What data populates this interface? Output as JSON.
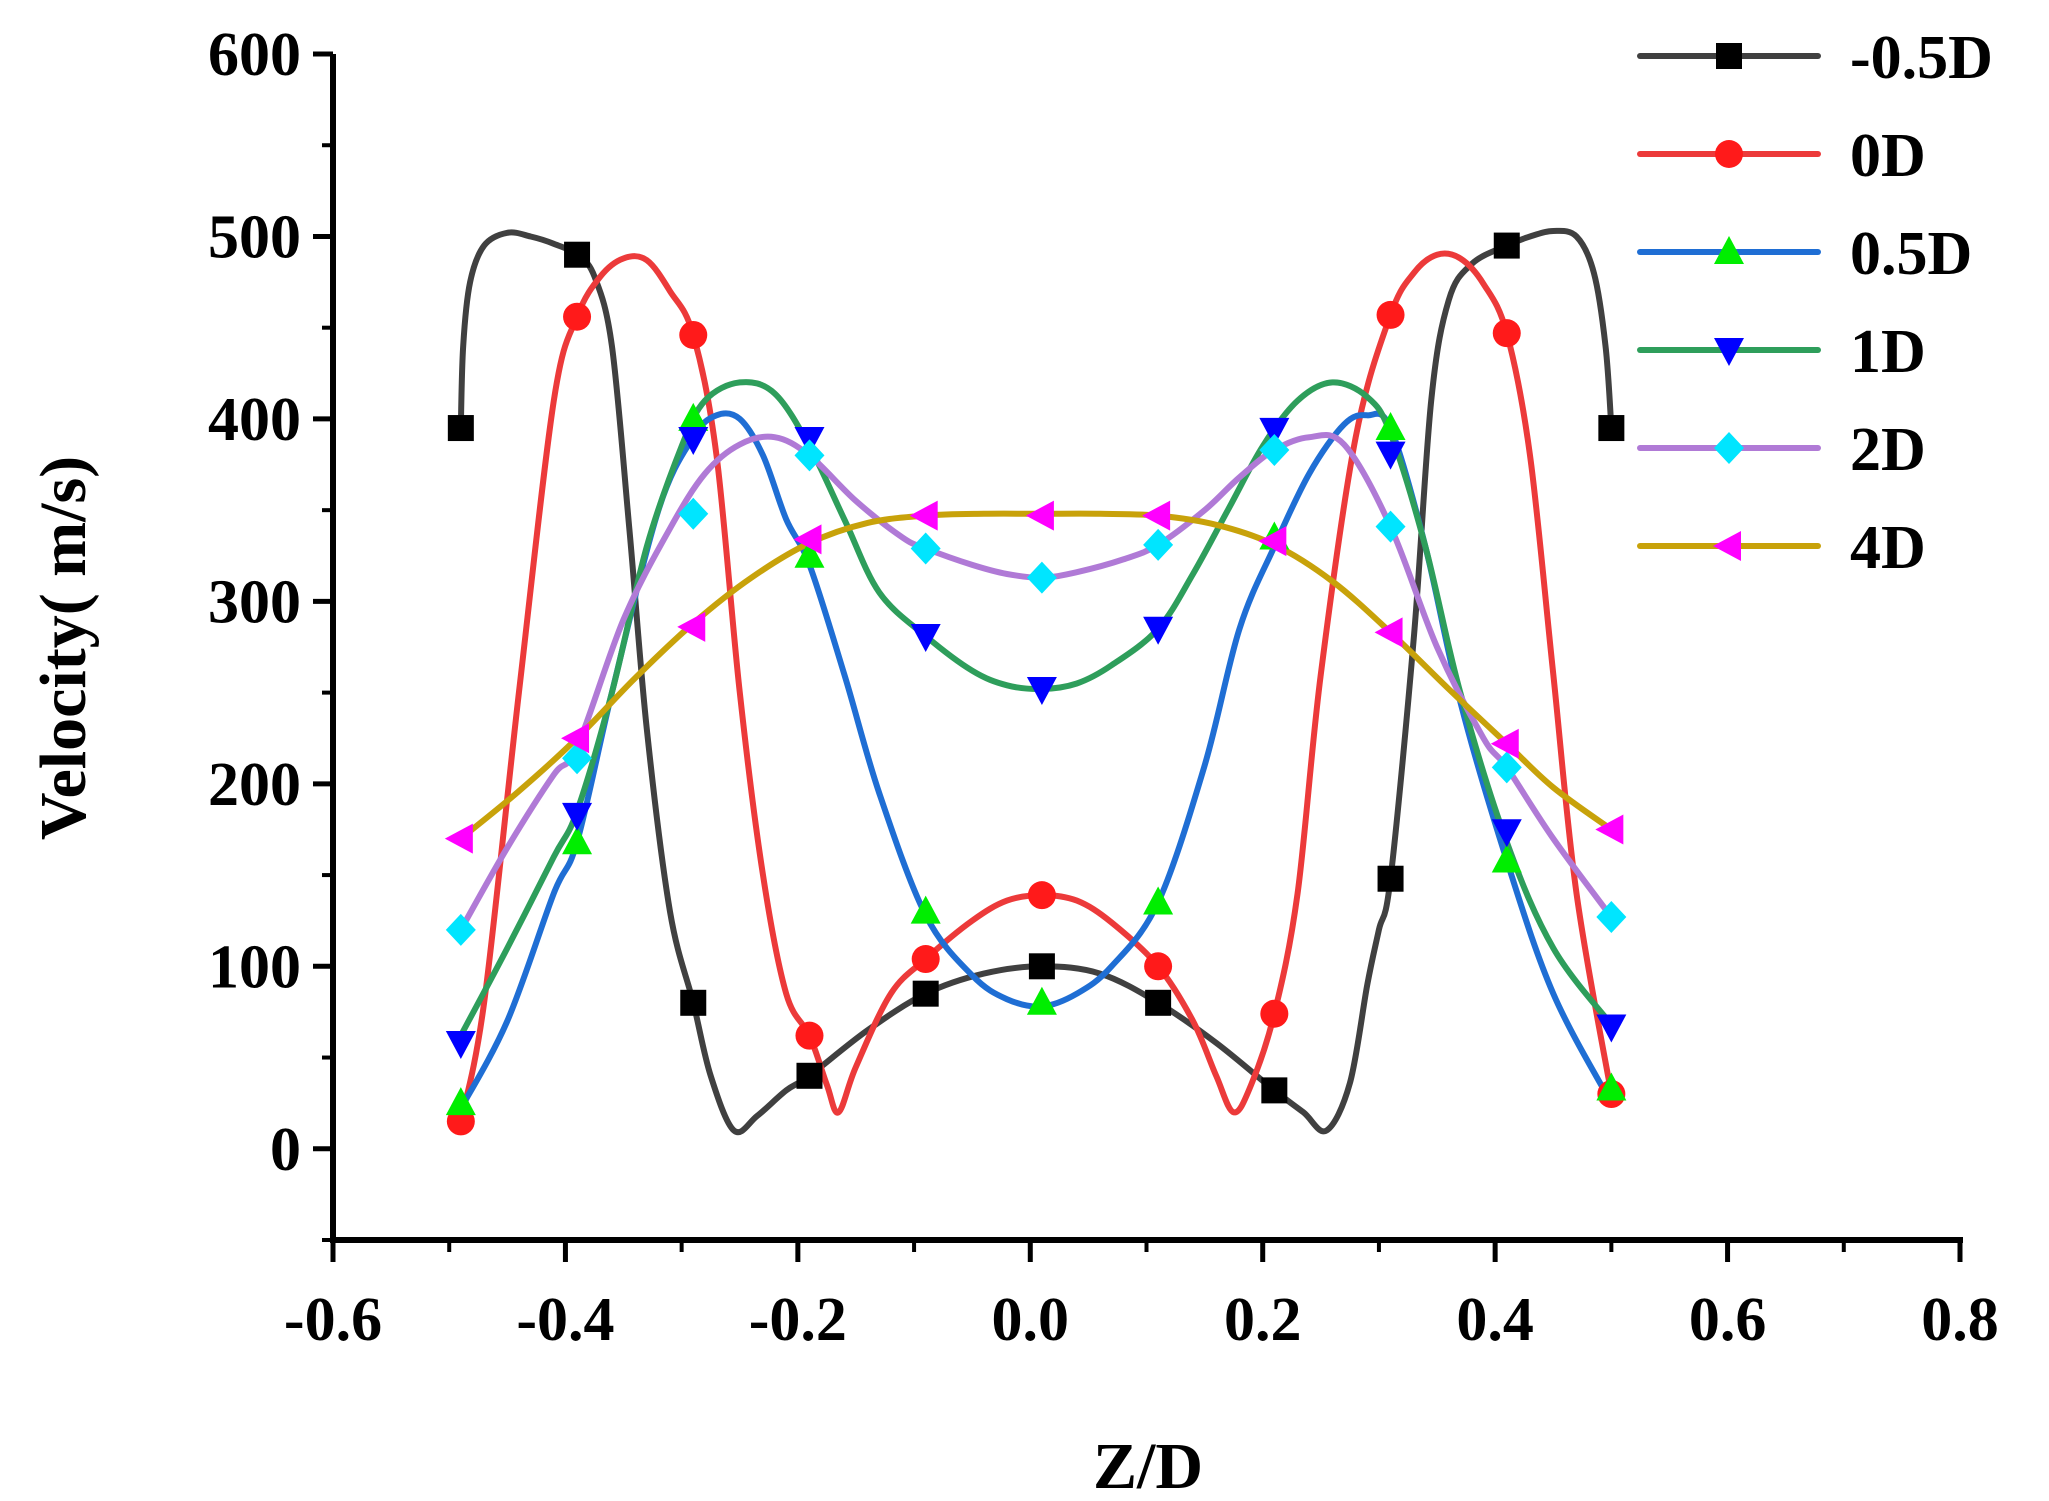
{
  "chart_data": {
    "type": "line",
    "xlabel": "Z/D",
    "ylabel": "Velocity( m/s)",
    "xlim": [
      -0.6,
      0.8
    ],
    "ylim": [
      -50,
      600
    ],
    "xticks": [
      -0.6,
      -0.4,
      -0.2,
      0.0,
      0.2,
      0.4,
      0.6,
      0.8
    ],
    "xtick_labels": [
      "-0.6",
      "-0.4",
      "-0.2",
      "0.0",
      "0.2",
      "0.4",
      "0.6",
      "0.8"
    ],
    "yticks": [
      0,
      100,
      200,
      300,
      400,
      500,
      600
    ],
    "ytick_labels": [
      "0",
      "100",
      "200",
      "300",
      "400",
      "500",
      "600"
    ],
    "legend_position": "top-right",
    "grid": false,
    "series": [
      {
        "name": "-0.5D",
        "color": "#404040",
        "marker": "square",
        "points": [
          [
            -0.49,
            395
          ],
          [
            -0.39,
            490
          ],
          [
            -0.29,
            80
          ],
          [
            -0.19,
            40
          ],
          [
            -0.09,
            85
          ],
          [
            0.01,
            100
          ],
          [
            0.11,
            80
          ],
          [
            0.21,
            32
          ],
          [
            0.31,
            148
          ],
          [
            0.41,
            495
          ],
          [
            0.5,
            395
          ]
        ],
        "curve": [
          [
            -0.49,
            395
          ],
          [
            -0.488,
            440
          ],
          [
            -0.482,
            475
          ],
          [
            -0.47,
            495
          ],
          [
            -0.45,
            502
          ],
          [
            -0.43,
            500
          ],
          [
            -0.41,
            496
          ],
          [
            -0.39,
            490
          ],
          [
            -0.375,
            478
          ],
          [
            -0.36,
            440
          ],
          [
            -0.345,
            340
          ],
          [
            -0.33,
            230
          ],
          [
            -0.31,
            130
          ],
          [
            -0.29,
            80
          ],
          [
            -0.275,
            40
          ],
          [
            -0.255,
            10
          ],
          [
            -0.235,
            18
          ],
          [
            -0.21,
            32
          ],
          [
            -0.19,
            40
          ],
          [
            -0.14,
            65
          ],
          [
            -0.09,
            85
          ],
          [
            -0.04,
            96
          ],
          [
            0.01,
            100
          ],
          [
            0.06,
            96
          ],
          [
            0.11,
            80
          ],
          [
            0.16,
            58
          ],
          [
            0.21,
            32
          ],
          [
            0.235,
            20
          ],
          [
            0.255,
            10
          ],
          [
            0.275,
            36
          ],
          [
            0.29,
            90
          ],
          [
            0.3,
            120
          ],
          [
            0.31,
            148
          ],
          [
            0.33,
            280
          ],
          [
            0.345,
            410
          ],
          [
            0.36,
            465
          ],
          [
            0.38,
            485
          ],
          [
            0.41,
            495
          ],
          [
            0.43,
            500
          ],
          [
            0.45,
            503
          ],
          [
            0.47,
            500
          ],
          [
            0.485,
            480
          ],
          [
            0.495,
            440
          ],
          [
            0.5,
            395
          ]
        ]
      },
      {
        "name": "0D",
        "color": "#ec3a3a",
        "marker": "circle",
        "points": [
          [
            -0.49,
            15
          ],
          [
            -0.39,
            456
          ],
          [
            -0.29,
            446
          ],
          [
            -0.19,
            62
          ],
          [
            -0.09,
            104
          ],
          [
            0.01,
            139
          ],
          [
            0.11,
            100
          ],
          [
            0.21,
            74
          ],
          [
            0.31,
            457
          ],
          [
            0.41,
            447
          ],
          [
            0.5,
            30
          ]
        ],
        "curve": [
          [
            -0.49,
            15
          ],
          [
            -0.47,
            80
          ],
          [
            -0.44,
            250
          ],
          [
            -0.41,
            410
          ],
          [
            -0.39,
            456
          ],
          [
            -0.37,
            478
          ],
          [
            -0.35,
            488
          ],
          [
            -0.33,
            487
          ],
          [
            -0.31,
            470
          ],
          [
            -0.29,
            446
          ],
          [
            -0.27,
            380
          ],
          [
            -0.25,
            250
          ],
          [
            -0.23,
            150
          ],
          [
            -0.21,
            85
          ],
          [
            -0.19,
            62
          ],
          [
            -0.175,
            35
          ],
          [
            -0.165,
            20
          ],
          [
            -0.15,
            45
          ],
          [
            -0.12,
            85
          ],
          [
            -0.09,
            104
          ],
          [
            -0.05,
            125
          ],
          [
            -0.02,
            136
          ],
          [
            0.01,
            139
          ],
          [
            0.04,
            136
          ],
          [
            0.07,
            124
          ],
          [
            0.11,
            100
          ],
          [
            0.14,
            70
          ],
          [
            0.16,
            40
          ],
          [
            0.175,
            20
          ],
          [
            0.19,
            35
          ],
          [
            0.21,
            74
          ],
          [
            0.23,
            140
          ],
          [
            0.25,
            260
          ],
          [
            0.28,
            390
          ],
          [
            0.31,
            457
          ],
          [
            0.33,
            480
          ],
          [
            0.35,
            490
          ],
          [
            0.37,
            488
          ],
          [
            0.39,
            474
          ],
          [
            0.41,
            447
          ],
          [
            0.43,
            380
          ],
          [
            0.45,
            260
          ],
          [
            0.47,
            140
          ],
          [
            0.5,
            30
          ]
        ]
      },
      {
        "name": "0.5D",
        "color": "#1f6ed4",
        "marker": "triangle-up",
        "points": [
          [
            -0.49,
            25
          ],
          [
            -0.39,
            168
          ],
          [
            -0.29,
            400
          ],
          [
            -0.19,
            325
          ],
          [
            -0.09,
            130
          ],
          [
            0.01,
            80
          ],
          [
            0.11,
            135
          ],
          [
            0.21,
            335
          ],
          [
            0.31,
            395
          ],
          [
            0.41,
            158
          ],
          [
            0.5,
            33
          ]
        ],
        "curve": [
          [
            -0.49,
            22
          ],
          [
            -0.45,
            70
          ],
          [
            -0.41,
            140
          ],
          [
            -0.39,
            168
          ],
          [
            -0.36,
            250
          ],
          [
            -0.32,
            350
          ],
          [
            -0.29,
            390
          ],
          [
            -0.27,
            402
          ],
          [
            -0.25,
            400
          ],
          [
            -0.23,
            380
          ],
          [
            -0.21,
            345
          ],
          [
            -0.19,
            320
          ],
          [
            -0.16,
            260
          ],
          [
            -0.13,
            195
          ],
          [
            -0.09,
            128
          ],
          [
            -0.05,
            95
          ],
          [
            -0.02,
            82
          ],
          [
            0.01,
            78
          ],
          [
            0.04,
            85
          ],
          [
            0.07,
            100
          ],
          [
            0.11,
            135
          ],
          [
            0.15,
            210
          ],
          [
            0.18,
            285
          ],
          [
            0.21,
            330
          ],
          [
            0.24,
            370
          ],
          [
            0.27,
            397
          ],
          [
            0.29,
            402
          ],
          [
            0.31,
            395
          ],
          [
            0.34,
            330
          ],
          [
            0.37,
            245
          ],
          [
            0.41,
            158
          ],
          [
            0.45,
            85
          ],
          [
            0.5,
            25
          ]
        ]
      },
      {
        "name": "1D",
        "color": "#2e9e5b",
        "marker": "triangle-down",
        "points": [
          [
            -0.49,
            58
          ],
          [
            -0.39,
            183
          ],
          [
            -0.29,
            389
          ],
          [
            -0.19,
            389
          ],
          [
            -0.09,
            281
          ],
          [
            0.01,
            252
          ],
          [
            0.11,
            285
          ],
          [
            0.21,
            394
          ],
          [
            0.31,
            381
          ],
          [
            0.41,
            174
          ],
          [
            0.5,
            67
          ]
        ],
        "curve": [
          [
            -0.49,
            62
          ],
          [
            -0.45,
            110
          ],
          [
            -0.41,
            160
          ],
          [
            -0.39,
            185
          ],
          [
            -0.36,
            250
          ],
          [
            -0.33,
            330
          ],
          [
            -0.3,
            385
          ],
          [
            -0.28,
            410
          ],
          [
            -0.25,
            420
          ],
          [
            -0.22,
            414
          ],
          [
            -0.19,
            385
          ],
          [
            -0.16,
            345
          ],
          [
            -0.13,
            305
          ],
          [
            -0.09,
            281
          ],
          [
            -0.05,
            262
          ],
          [
            -0.02,
            254
          ],
          [
            0.01,
            252
          ],
          [
            0.04,
            255
          ],
          [
            0.07,
            265
          ],
          [
            0.11,
            285
          ],
          [
            0.14,
            315
          ],
          [
            0.17,
            350
          ],
          [
            0.2,
            385
          ],
          [
            0.23,
            410
          ],
          [
            0.26,
            420
          ],
          [
            0.29,
            412
          ],
          [
            0.31,
            392
          ],
          [
            0.34,
            330
          ],
          [
            0.37,
            250
          ],
          [
            0.41,
            168
          ],
          [
            0.45,
            110
          ],
          [
            0.5,
            68
          ]
        ]
      },
      {
        "name": "2D",
        "color": "#b07ad6",
        "marker": "diamond",
        "points": [
          [
            -0.49,
            120
          ],
          [
            -0.39,
            214
          ],
          [
            -0.29,
            348
          ],
          [
            -0.19,
            380
          ],
          [
            -0.09,
            329
          ],
          [
            0.01,
            313
          ],
          [
            0.11,
            331
          ],
          [
            0.21,
            383
          ],
          [
            0.31,
            341
          ],
          [
            0.41,
            209
          ],
          [
            0.5,
            127
          ]
        ],
        "curve": [
          [
            -0.49,
            120
          ],
          [
            -0.45,
            165
          ],
          [
            -0.41,
            205
          ],
          [
            -0.39,
            220
          ],
          [
            -0.35,
            290
          ],
          [
            -0.31,
            340
          ],
          [
            -0.28,
            370
          ],
          [
            -0.25,
            386
          ],
          [
            -0.22,
            390
          ],
          [
            -0.19,
            380
          ],
          [
            -0.15,
            355
          ],
          [
            -0.11,
            335
          ],
          [
            -0.09,
            329
          ],
          [
            -0.05,
            320
          ],
          [
            -0.02,
            315
          ],
          [
            0.01,
            313
          ],
          [
            0.04,
            316
          ],
          [
            0.08,
            323
          ],
          [
            0.11,
            331
          ],
          [
            0.15,
            350
          ],
          [
            0.18,
            368
          ],
          [
            0.21,
            383
          ],
          [
            0.24,
            390
          ],
          [
            0.27,
            386
          ],
          [
            0.31,
            341
          ],
          [
            0.35,
            275
          ],
          [
            0.39,
            225
          ],
          [
            0.41,
            209
          ],
          [
            0.45,
            170
          ],
          [
            0.5,
            127
          ]
        ]
      },
      {
        "name": "4D",
        "color": "#c8a20a",
        "marker": "triangle-left",
        "points": [
          [
            -0.49,
            170
          ],
          [
            -0.39,
            225
          ],
          [
            -0.29,
            286
          ],
          [
            -0.19,
            334
          ],
          [
            -0.09,
            347
          ],
          [
            0.01,
            347
          ],
          [
            0.11,
            347
          ],
          [
            0.21,
            333
          ],
          [
            0.31,
            283
          ],
          [
            0.41,
            222
          ],
          [
            0.5,
            175
          ]
        ],
        "curve": [
          [
            -0.49,
            170
          ],
          [
            -0.44,
            196
          ],
          [
            -0.39,
            225
          ],
          [
            -0.34,
            258
          ],
          [
            -0.29,
            288
          ],
          [
            -0.24,
            313
          ],
          [
            -0.19,
            332
          ],
          [
            -0.14,
            343
          ],
          [
            -0.09,
            347
          ],
          [
            -0.04,
            348
          ],
          [
            0.01,
            348
          ],
          [
            0.06,
            348
          ],
          [
            0.11,
            347
          ],
          [
            0.16,
            342
          ],
          [
            0.21,
            331
          ],
          [
            0.26,
            311
          ],
          [
            0.31,
            283
          ],
          [
            0.36,
            252
          ],
          [
            0.41,
            222
          ],
          [
            0.45,
            198
          ],
          [
            0.5,
            175
          ]
        ]
      }
    ]
  }
}
